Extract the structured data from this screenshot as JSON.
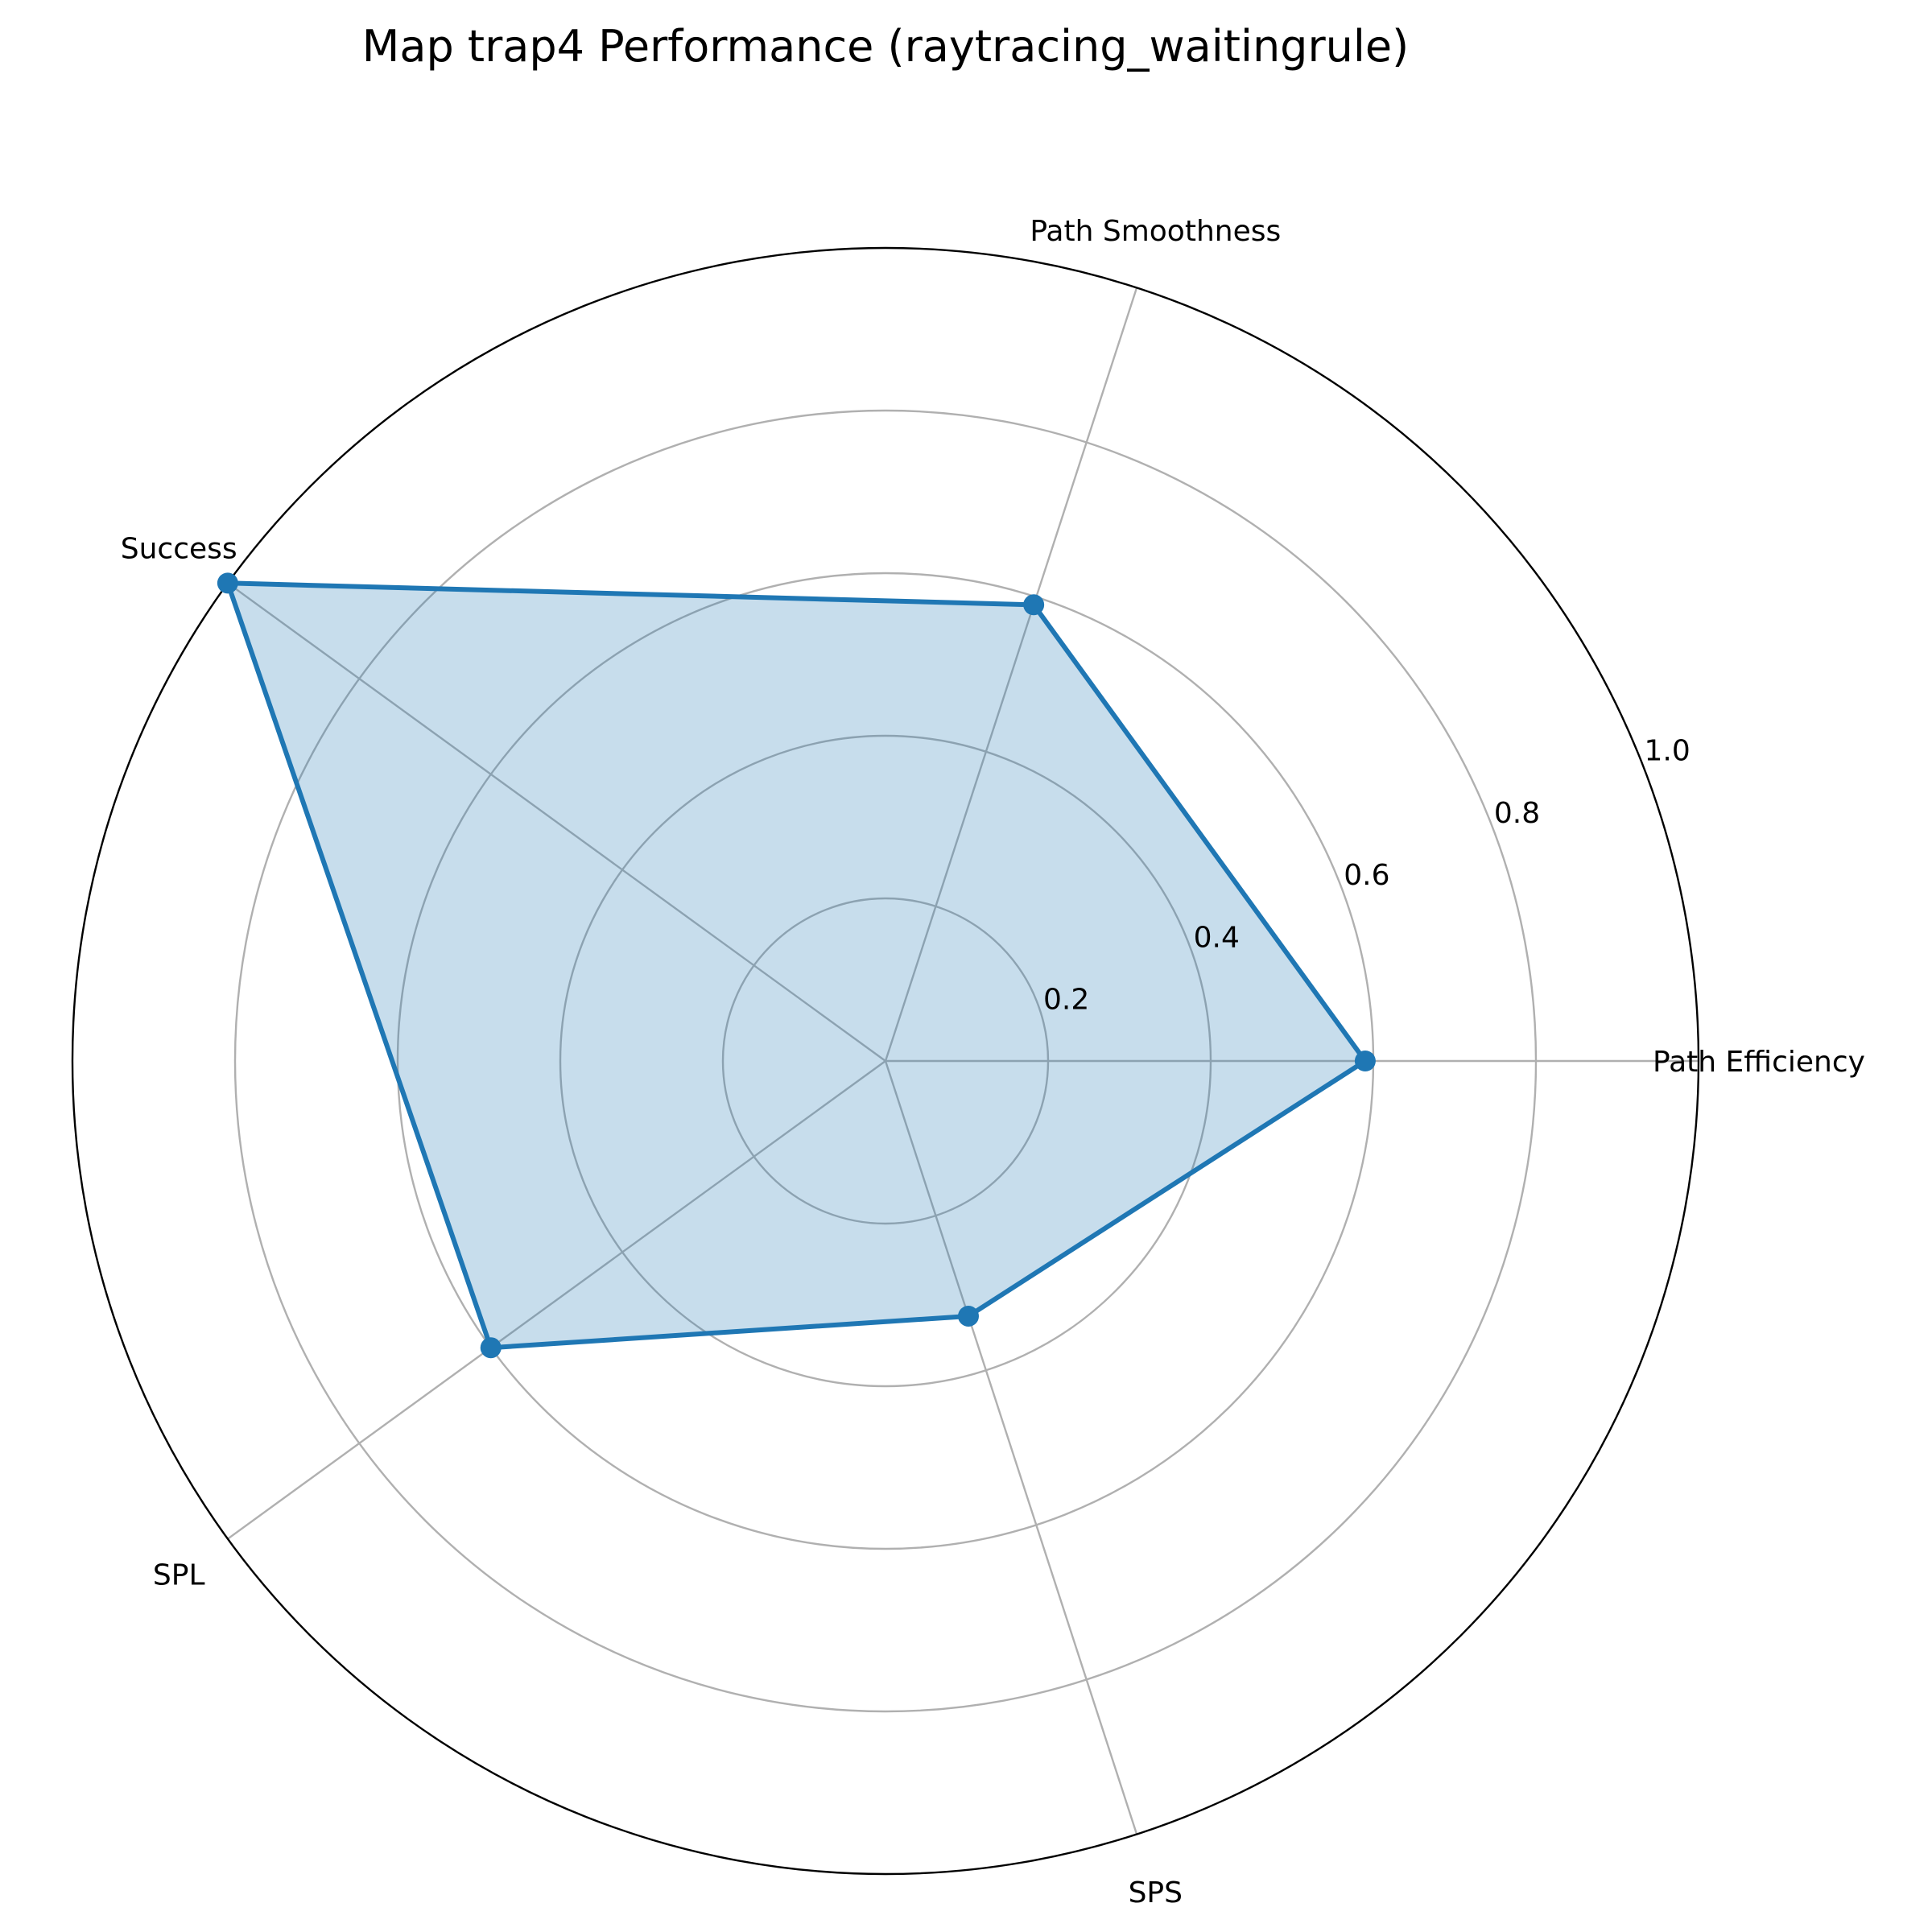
{
  "chart_data": {
    "type": "radar",
    "title": "Map trap4 Performance (raytracing_waitingrule)",
    "axes": [
      "Path Efficiency",
      "Path Smoothness",
      "Success",
      "SPL",
      "SPS"
    ],
    "series": [
      {
        "values": [
          0.59,
          0.59,
          1.0,
          0.6,
          0.33
        ]
      }
    ],
    "rlim": [
      0,
      1.0
    ],
    "rticks": [
      "0.2",
      "0.4",
      "0.6",
      "0.8",
      "1.0"
    ],
    "grid": true,
    "colors": {
      "line": "#1f77b4",
      "fill": "#1f77b4",
      "grid": "#b0b0b0",
      "frame": "#000000"
    }
  }
}
